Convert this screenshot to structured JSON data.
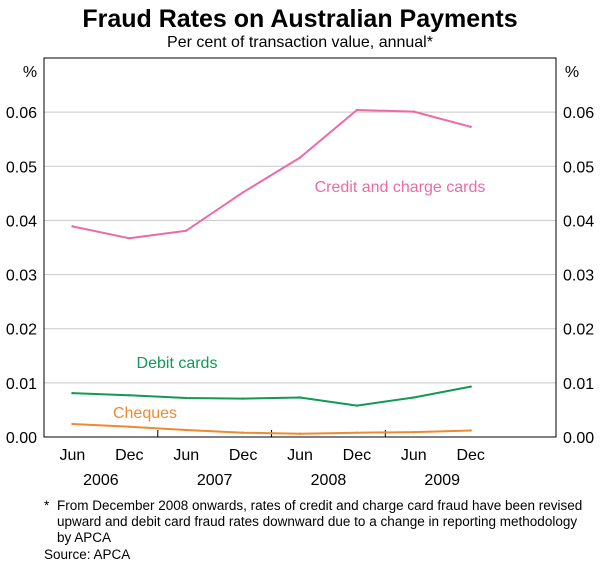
{
  "chart_data": {
    "type": "line",
    "title": "Fraud Rates on Australian Payments",
    "subtitle": "Per cent of transaction value, annual*",
    "y_unit_left": "%",
    "y_unit_right": "%",
    "ylim": [
      0,
      0.07
    ],
    "yticks": [
      "0.00",
      "0.01",
      "0.02",
      "0.03",
      "0.04",
      "0.05",
      "0.06"
    ],
    "ytick_values": [
      0,
      0.01,
      0.02,
      0.03,
      0.04,
      0.05,
      0.06
    ],
    "x_tick_labels": [
      "Jun",
      "Dec",
      "Jun",
      "Dec",
      "Jun",
      "Dec",
      "Jun",
      "Dec"
    ],
    "x_year_labels": [
      "2006",
      "2007",
      "2008",
      "2009"
    ],
    "grid": true,
    "series": [
      {
        "name": "Credit and charge cards",
        "color": "#ee6aa7",
        "x": [
          "Jun 2006",
          "Dec 2006",
          "Jun 2007",
          "Dec 2007",
          "Jun 2008",
          "Dec 2008",
          "Jun 2009",
          "Dec 2009"
        ],
        "values": [
          0.0389,
          0.0367,
          0.0381,
          0.0452,
          0.0516,
          0.0604,
          0.0601,
          0.0573
        ]
      },
      {
        "name": "Debit cards",
        "color": "#119955",
        "x": [
          "Jun 2006",
          "Dec 2006",
          "Jun 2007",
          "Dec 2007",
          "Jun 2008",
          "Dec 2008",
          "Jun 2009",
          "Dec 2009"
        ],
        "values": [
          0.0081,
          0.0077,
          0.0072,
          0.0071,
          0.0073,
          0.0058,
          0.0073,
          0.0093
        ]
      },
      {
        "name": "Cheques",
        "color": "#f08a30",
        "x": [
          "Jun 2006",
          "Dec 2006",
          "Jun 2007",
          "Dec 2007",
          "Jun 2008",
          "Dec 2008",
          "Jun 2009",
          "Dec 2009"
        ],
        "values": [
          0.0024,
          0.0019,
          0.0013,
          0.0008,
          0.0006,
          0.0008,
          0.0009,
          0.0012
        ]
      }
    ]
  },
  "footnote": {
    "marker": "*",
    "text": "From December 2008 onwards, rates of credit and charge card fraud have been revised upward and debit card fraud rates downward due to a change in reporting methodology by APCA"
  },
  "source": "Source: APCA"
}
